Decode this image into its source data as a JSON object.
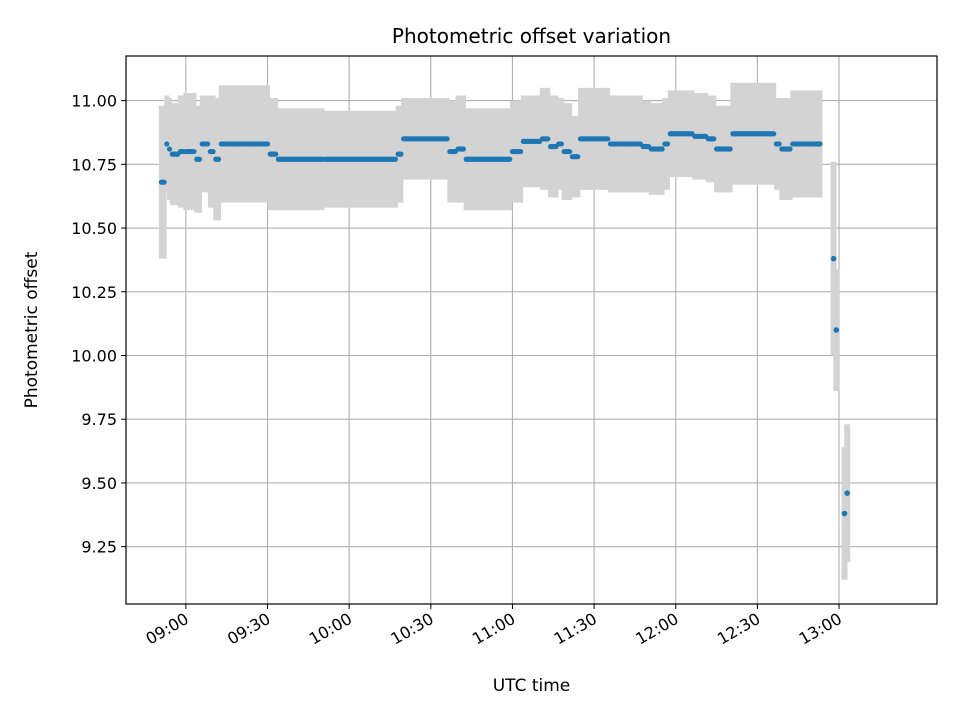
{
  "chart_data": {
    "type": "scatter",
    "title": "Photometric offset variation",
    "xlabel": "UTC time",
    "ylabel": "Photometric offset",
    "x_unit": "UTC time (hh:mm)",
    "xlim": [
      "08:38",
      "13:36"
    ],
    "ylim": [
      9.025,
      11.175
    ],
    "x_ticks": [
      "09:00",
      "09:30",
      "10:00",
      "10:30",
      "11:00",
      "11:30",
      "12:00",
      "12:30",
      "13:00"
    ],
    "y_ticks": [
      "9.25",
      "9.50",
      "9.75",
      "10.00",
      "10.25",
      "10.50",
      "10.75",
      "11.00"
    ],
    "grid": true,
    "point_color": "#1f77b4",
    "errorbar_color": "#d3d3d3",
    "segments": [
      {
        "start": "08:51",
        "end": "08:52",
        "y": 10.68,
        "err": 0.3
      },
      {
        "start": "08:53",
        "end": "08:53",
        "y": 10.83,
        "err": 0.19
      },
      {
        "start": "08:54",
        "end": "08:54",
        "y": 10.81,
        "err": 0.2
      },
      {
        "start": "08:55",
        "end": "08:57",
        "y": 10.79,
        "err": 0.2
      },
      {
        "start": "08:58",
        "end": "08:59",
        "y": 10.8,
        "err": 0.22
      },
      {
        "start": "09:00",
        "end": "09:03",
        "y": 10.8,
        "err": 0.23
      },
      {
        "start": "09:04",
        "end": "09:05",
        "y": 10.77,
        "err": 0.21
      },
      {
        "start": "09:06",
        "end": "09:08",
        "y": 10.83,
        "err": 0.19
      },
      {
        "start": "09:09",
        "end": "09:10",
        "y": 10.8,
        "err": 0.22
      },
      {
        "start": "09:11",
        "end": "09:12",
        "y": 10.77,
        "err": 0.24
      },
      {
        "start": "09:13",
        "end": "09:30",
        "y": 10.83,
        "err": 0.23
      },
      {
        "start": "09:31",
        "end": "09:33",
        "y": 10.79,
        "err": 0.22
      },
      {
        "start": "09:34",
        "end": "09:50",
        "y": 10.77,
        "err": 0.2
      },
      {
        "start": "09:51",
        "end": "10:17",
        "y": 10.77,
        "err": 0.19
      },
      {
        "start": "10:18",
        "end": "10:19",
        "y": 10.79,
        "err": 0.19
      },
      {
        "start": "10:20",
        "end": "10:36",
        "y": 10.85,
        "err": 0.16
      },
      {
        "start": "10:37",
        "end": "10:39",
        "y": 10.8,
        "err": 0.2
      },
      {
        "start": "10:40",
        "end": "10:42",
        "y": 10.81,
        "err": 0.21
      },
      {
        "start": "10:43",
        "end": "10:59",
        "y": 10.77,
        "err": 0.2
      },
      {
        "start": "11:00",
        "end": "11:03",
        "y": 10.8,
        "err": 0.2
      },
      {
        "start": "11:04",
        "end": "11:10",
        "y": 10.84,
        "err": 0.18
      },
      {
        "start": "11:11",
        "end": "11:13",
        "y": 10.85,
        "err": 0.2
      },
      {
        "start": "11:14",
        "end": "11:16",
        "y": 10.82,
        "err": 0.2
      },
      {
        "start": "11:17",
        "end": "11:18",
        "y": 10.83,
        "err": 0.18
      },
      {
        "start": "11:19",
        "end": "11:21",
        "y": 10.8,
        "err": 0.19
      },
      {
        "start": "11:22",
        "end": "11:24",
        "y": 10.78,
        "err": 0.16
      },
      {
        "start": "11:25",
        "end": "11:35",
        "y": 10.85,
        "err": 0.2
      },
      {
        "start": "11:36",
        "end": "11:47",
        "y": 10.83,
        "err": 0.19
      },
      {
        "start": "11:48",
        "end": "11:50",
        "y": 10.82,
        "err": 0.18
      },
      {
        "start": "11:51",
        "end": "11:55",
        "y": 10.81,
        "err": 0.18
      },
      {
        "start": "11:56",
        "end": "11:57",
        "y": 10.83,
        "err": 0.18
      },
      {
        "start": "11:58",
        "end": "12:06",
        "y": 10.87,
        "err": 0.17
      },
      {
        "start": "12:07",
        "end": "12:11",
        "y": 10.86,
        "err": 0.17
      },
      {
        "start": "12:12",
        "end": "12:14",
        "y": 10.85,
        "err": 0.17
      },
      {
        "start": "12:15",
        "end": "12:20",
        "y": 10.81,
        "err": 0.17
      },
      {
        "start": "12:21",
        "end": "12:36",
        "y": 10.87,
        "err": 0.2
      },
      {
        "start": "12:37",
        "end": "12:38",
        "y": 10.83,
        "err": 0.18
      },
      {
        "start": "12:39",
        "end": "12:42",
        "y": 10.81,
        "err": 0.2
      },
      {
        "start": "12:43",
        "end": "12:53",
        "y": 10.83,
        "err": 0.21
      }
    ],
    "points": [
      {
        "x": "12:58",
        "y": 10.38,
        "err": 0.38
      },
      {
        "x": "12:59",
        "y": 10.1,
        "err": 0.24
      },
      {
        "x": "13:02",
        "y": 9.38,
        "err": 0.26
      },
      {
        "x": "13:03",
        "y": 9.46,
        "err": 0.27
      }
    ]
  }
}
